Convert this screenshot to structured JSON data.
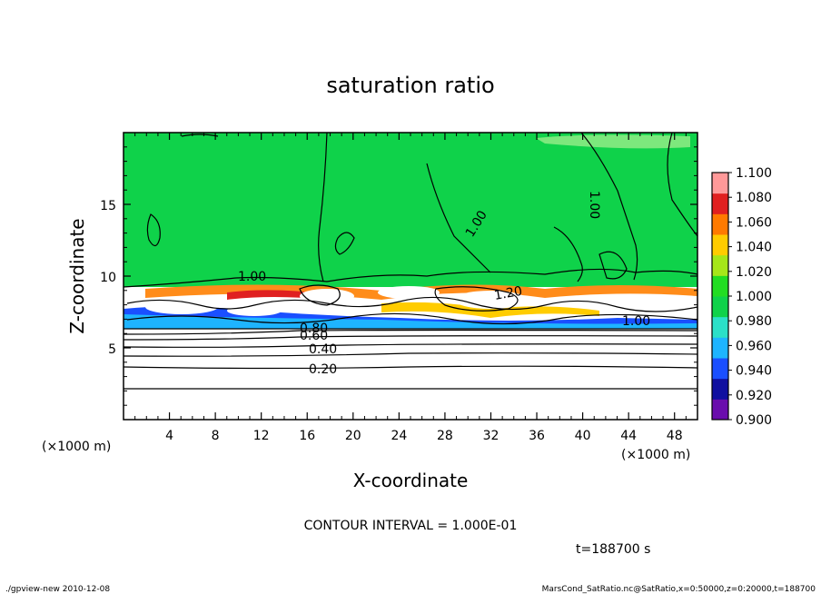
{
  "chart_data": {
    "type": "heatmap",
    "title": "saturation ratio",
    "xlabel": "X-coordinate",
    "ylabel": "Z-coordinate",
    "x_unit": "(×1000 m)",
    "z_unit": "(×1000 m)",
    "xlim": [
      0,
      50
    ],
    "ylim": [
      0,
      20
    ],
    "x_ticks": [
      "4",
      "8",
      "12",
      "16",
      "20",
      "24",
      "28",
      "32",
      "36",
      "40",
      "44",
      "48"
    ],
    "x_tick_values": [
      4,
      8,
      12,
      16,
      20,
      24,
      28,
      32,
      36,
      40,
      44,
      48
    ],
    "y_ticks": [
      "5",
      "10",
      "15"
    ],
    "y_tick_values": [
      5,
      10,
      15
    ],
    "colorbar": {
      "levels": [
        "0.900",
        "0.920",
        "0.940",
        "0.960",
        "0.980",
        "1.000",
        "1.020",
        "1.040",
        "1.060",
        "1.080",
        "1.100"
      ],
      "colors": [
        "#6a0dad",
        "#1010a0",
        "#1a4fff",
        "#1eb4ff",
        "#2be0c8",
        "#0fd24a",
        "#22dd22",
        "#a6e619",
        "#ffcc00",
        "#ff7a00",
        "#e02020",
        "#ff9999"
      ]
    },
    "contour_labels": [
      "0.20",
      "0.40",
      "0.60",
      "0.80",
      "1.00",
      "1.00",
      "1.00",
      "1.00",
      "1.20"
    ],
    "contour_interval_text": "CONTOUR INTERVAL = 1.000E-01",
    "time_text": "t=188700  s"
  },
  "footer": {
    "left": "./gpview-new   2010-12-08",
    "right": "MarsCond_SatRatio.nc@SatRatio,x=0:50000,z=0:20000,t=188700"
  }
}
